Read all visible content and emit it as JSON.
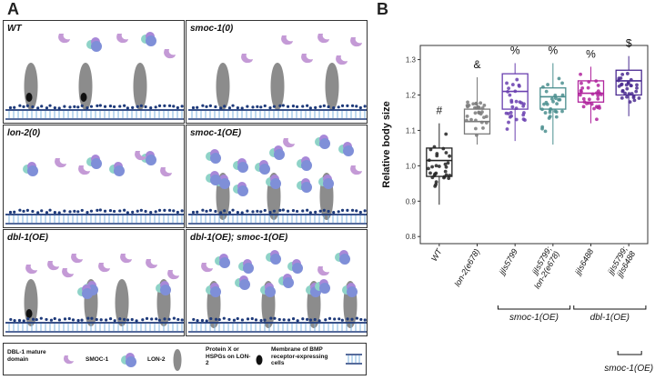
{
  "panel_a": {
    "label": "A",
    "cells": [
      {
        "title": "WT"
      },
      {
        "title": "smoc-1(0)"
      },
      {
        "title": "lon-2(0)"
      },
      {
        "title": "smoc-1(OE)"
      },
      {
        "title": "dbl-1(OE)"
      },
      {
        "title": "dbl-1(OE); smoc-1(OE)"
      }
    ],
    "legend": {
      "dbl1": "DBL-1 mature domain",
      "smoc1": "SMOC-1",
      "lon2": "LON-2",
      "proteinx": "Protein X or HSPGs on LON-2",
      "membrane": "Membrane of BMP receptor-expressing cells"
    }
  },
  "panel_b": {
    "label": "B",
    "chart_data": {
      "type": "boxplot",
      "ylabel": "Relative body size",
      "ylim": [
        0.78,
        1.34
      ],
      "yticks": [
        0.8,
        0.9,
        1.0,
        1.1,
        1.2,
        1.3
      ],
      "ytick_labels": [
        "0.8",
        "0.9",
        "1.0",
        "1.1",
        "1.2",
        "1.3"
      ],
      "categories": [
        {
          "label": "WT",
          "q1": 0.97,
          "median": 1.015,
          "q3": 1.05,
          "whisker_low": 0.89,
          "whisker_high": 1.12,
          "sig": "#",
          "color": "#222222"
        },
        {
          "label": "lon-2(e678)",
          "q1": 1.09,
          "median": 1.125,
          "q3": 1.16,
          "whisker_low": 1.06,
          "whisker_high": 1.25,
          "sig": "&",
          "color": "#7a7a7a"
        },
        {
          "label": "jjIs5799",
          "q1": 1.16,
          "median": 1.21,
          "q3": 1.26,
          "whisker_low": 1.07,
          "whisker_high": 1.29,
          "sig": "%",
          "color": "#6a40b0"
        },
        {
          "label": "jjIs5799;\nlon-2(e678)",
          "q1": 1.16,
          "median": 1.195,
          "q3": 1.22,
          "whisker_low": 1.06,
          "whisker_high": 1.29,
          "sig": "%",
          "color": "#4a8e8e"
        },
        {
          "label": "jjIs6488",
          "q1": 1.18,
          "median": 1.205,
          "q3": 1.24,
          "whisker_low": 1.12,
          "whisker_high": 1.28,
          "sig": "%",
          "color": "#b0259d"
        },
        {
          "label": "jjIs5799;\njjIs6488",
          "q1": 1.2,
          "median": 1.24,
          "q3": 1.27,
          "whisker_low": 1.14,
          "whisker_high": 1.31,
          "sig": "$",
          "color": "#4a2a90"
        }
      ],
      "groups": [
        {
          "label": "smoc-1(OE)",
          "from": 2,
          "to": 3
        },
        {
          "label": "dbl-1(OE)",
          "from": 4,
          "to": 5
        },
        {
          "label": "smoc-1(OE)",
          "from": 5,
          "to": 5
        }
      ]
    }
  },
  "colors": {
    "dbl1": "#c49ad6",
    "smoc_blue": "#7f8fd8",
    "smoc_teal": "#8fd3c8",
    "smoc_purple": "#a888d8",
    "lon2": "#8c8c8c",
    "proteinx": "#111111",
    "membrane_dark": "#1e3a7a",
    "membrane_light": "#7fb6e0"
  }
}
